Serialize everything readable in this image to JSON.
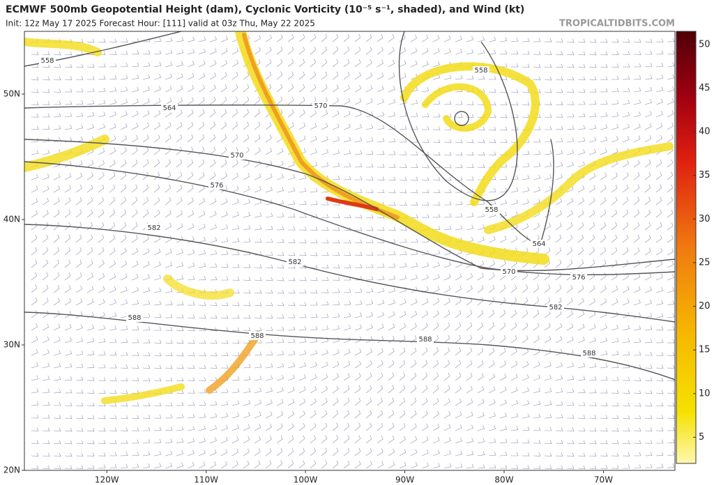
{
  "header": {
    "title": "ECMWF 500mb Geopotential Height (dam), Cyclonic Vorticity (10⁻⁵ s⁻¹, shaded), and Wind (kt)",
    "subtitle": "Init: 12z May 17 2025   Forecast Hour: [111]   valid at 03z Thu, May 22 2025",
    "site": "TROPICALTIDBITS.COM"
  },
  "map": {
    "latlim": [
      20,
      55
    ],
    "lonlim": [
      -128.3,
      -62.8
    ],
    "latticks": [
      {
        "value": 50,
        "label": "50N"
      },
      {
        "value": 40,
        "label": "40N"
      },
      {
        "value": 30,
        "label": "30N"
      },
      {
        "value": 20,
        "label": "20N"
      }
    ],
    "lonticks": [
      {
        "value": -120,
        "label": "120W"
      },
      {
        "value": -110,
        "label": "110W"
      },
      {
        "value": -100,
        "label": "100W"
      },
      {
        "value": -90,
        "label": "90W"
      },
      {
        "value": -80,
        "label": "80W"
      },
      {
        "value": -70,
        "label": "70W"
      }
    ],
    "contour_labels": [
      558,
      564,
      570,
      570,
      576,
      582,
      582,
      588,
      588,
      588,
      588,
      558,
      558,
      564,
      570,
      576,
      582
    ]
  },
  "colorbar": {
    "range": [
      2,
      51.5
    ],
    "ticks": [
      5,
      10,
      15,
      20,
      25,
      30,
      35,
      40,
      45,
      50
    ]
  }
}
